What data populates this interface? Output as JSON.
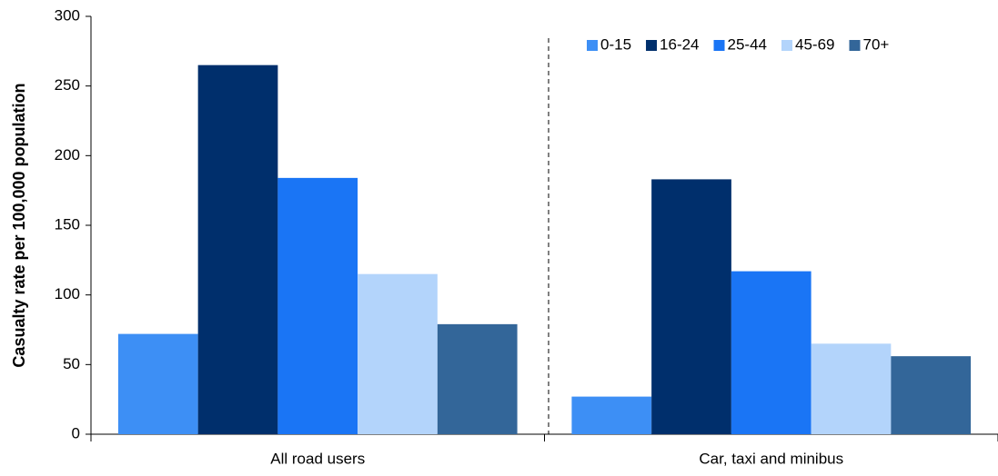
{
  "chart_data": {
    "type": "bar",
    "y_label": "Casualty rate per 100,000 population",
    "categories": [
      "All road users",
      "Car, taxi and minibus"
    ],
    "series": [
      {
        "name": "0-15",
        "color": "#3d8ff5",
        "values": [
          72,
          27
        ]
      },
      {
        "name": "16-24",
        "color": "#002f6c",
        "values": [
          265,
          183
        ]
      },
      {
        "name": "25-44",
        "color": "#1a75f5",
        "values": [
          184,
          117
        ]
      },
      {
        "name": "45-69",
        "color": "#b3d4fb",
        "values": [
          115,
          65
        ]
      },
      {
        "name": "70+",
        "color": "#336699",
        "values": [
          79,
          56
        ]
      }
    ],
    "ylim": [
      0,
      300
    ],
    "yticks": [
      0,
      50,
      100,
      150,
      200,
      250,
      300
    ],
    "legend": "top-right"
  }
}
